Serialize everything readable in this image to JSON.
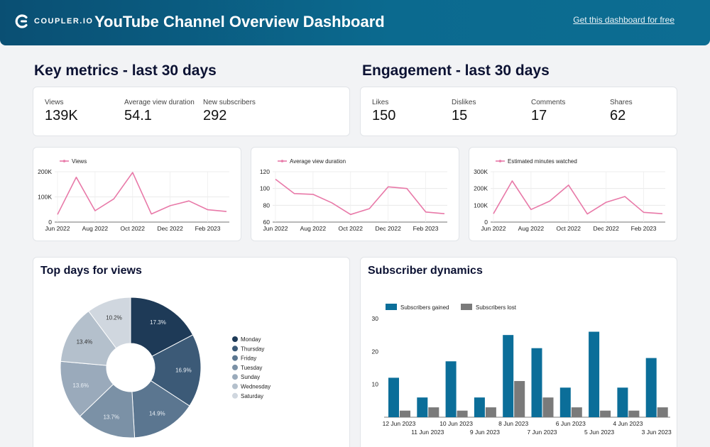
{
  "header": {
    "logo_text": "COUPLER.IO",
    "title": "YouTube Channel Overview Dashboard",
    "link": "Get this dashboard for free"
  },
  "key_metrics": {
    "title": "Key metrics - last 30 days",
    "items": [
      {
        "label": "Views",
        "value": "139K"
      },
      {
        "label": "Average view duration",
        "value": "54.1"
      },
      {
        "label": "New subscribers",
        "value": "292"
      }
    ]
  },
  "engagement": {
    "title": "Engagement - last 30 days",
    "items": [
      {
        "label": "Likes",
        "value": "150"
      },
      {
        "label": "Dislikes",
        "value": "15"
      },
      {
        "label": "Comments",
        "value": "17"
      },
      {
        "label": "Shares",
        "value": "62"
      }
    ]
  },
  "pie_title": "Top days for views",
  "bar_title": "Subscriber dynamics",
  "colors": {
    "line": "#e879a8",
    "gained": "#0b6e99",
    "lost": "#7a7a7a",
    "pie": [
      "#1e3a57",
      "#3c5a77",
      "#5b7690",
      "#7b91a6",
      "#9aaabb",
      "#b4c0cc",
      "#d0d7df"
    ]
  },
  "chart_data": [
    {
      "type": "line",
      "series_name": "Views",
      "values": [
        30000,
        178000,
        45000,
        92000,
        197000,
        32000,
        65000,
        84000,
        49000,
        42000
      ],
      "ylim": [
        0,
        200000
      ],
      "yticks": [
        {
          "v": 0,
          "t": "0"
        },
        {
          "v": 100000,
          "t": "100K"
        },
        {
          "v": 200000,
          "t": "200K"
        }
      ],
      "xticks": [
        {
          "i": 0,
          "t": "Jun 2022"
        },
        {
          "i": 2,
          "t": "Aug 2022"
        },
        {
          "i": 4,
          "t": "Oct 2022"
        },
        {
          "i": 6,
          "t": "Dec 2022"
        },
        {
          "i": 8,
          "t": "Feb 2023"
        }
      ]
    },
    {
      "type": "line",
      "series_name": "Average view duration",
      "values": [
        111,
        94,
        93,
        83,
        69,
        76,
        102,
        100,
        72,
        70
      ],
      "ylim": [
        60,
        120
      ],
      "yticks": [
        {
          "v": 60,
          "t": "60"
        },
        {
          "v": 80,
          "t": "80"
        },
        {
          "v": 100,
          "t": "100"
        },
        {
          "v": 120,
          "t": "120"
        }
      ],
      "xticks": [
        {
          "i": 0,
          "t": "Jun 2022"
        },
        {
          "i": 2,
          "t": "Aug 2022"
        },
        {
          "i": 4,
          "t": "Oct 2022"
        },
        {
          "i": 6,
          "t": "Dec 2022"
        },
        {
          "i": 8,
          "t": "Feb 2023"
        }
      ]
    },
    {
      "type": "line",
      "series_name": "Estimated minutes watched",
      "values": [
        50000,
        245000,
        75000,
        125000,
        220000,
        48000,
        118000,
        152000,
        58000,
        50000
      ],
      "ylim": [
        0,
        300000
      ],
      "yticks": [
        {
          "v": 0,
          "t": "0"
        },
        {
          "v": 100000,
          "t": "100K"
        },
        {
          "v": 200000,
          "t": "200K"
        },
        {
          "v": 300000,
          "t": "300K"
        }
      ],
      "xticks": [
        {
          "i": 0,
          "t": "Jun 2022"
        },
        {
          "i": 2,
          "t": "Aug 2022"
        },
        {
          "i": 4,
          "t": "Oct 2022"
        },
        {
          "i": 6,
          "t": "Dec 2022"
        },
        {
          "i": 8,
          "t": "Feb 2023"
        }
      ]
    },
    {
      "type": "pie",
      "title": "Top days for views",
      "slices": [
        {
          "label": "Monday",
          "value": 17.3
        },
        {
          "label": "Thursday",
          "value": 16.9
        },
        {
          "label": "Friday",
          "value": 14.9
        },
        {
          "label": "Tuesday",
          "value": 13.7
        },
        {
          "label": "Sunday",
          "value": 13.6
        },
        {
          "label": "Wednesday",
          "value": 13.4
        },
        {
          "label": "Saturday",
          "value": 10.2
        }
      ]
    },
    {
      "type": "bar",
      "title": "Subscriber dynamics",
      "categories": [
        "12 Jun 2023",
        "11 Jun 2023",
        "10 Jun 2023",
        "9 Jun 2023",
        "8 Jun 2023",
        "7 Jun 2023",
        "6 Jun 2023",
        "5 Jun 2023",
        "4 Jun 2023",
        "3 Jun 2023"
      ],
      "series": [
        {
          "name": "Subscribers gained",
          "values": [
            12,
            6,
            17,
            6,
            25,
            21,
            9,
            26,
            9,
            18
          ]
        },
        {
          "name": "Subscribers lost",
          "values": [
            2,
            3,
            2,
            3,
            11,
            6,
            3,
            2,
            2,
            3
          ]
        }
      ],
      "ylim": [
        0,
        30
      ],
      "yticks": [
        0,
        10,
        20,
        30
      ]
    }
  ]
}
